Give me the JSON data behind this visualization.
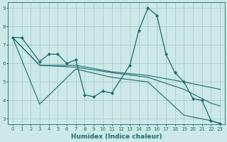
{
  "xlabel": "Humidex (Indice chaleur)",
  "xlim": [
    -0.5,
    23.5
  ],
  "ylim": [
    2.7,
    9.3
  ],
  "yticks": [
    3,
    4,
    5,
    6,
    7,
    8,
    9
  ],
  "xticks": [
    0,
    1,
    2,
    3,
    4,
    5,
    6,
    7,
    8,
    9,
    10,
    11,
    12,
    13,
    14,
    15,
    16,
    17,
    18,
    19,
    20,
    21,
    22,
    23
  ],
  "background_color": "#cce8e8",
  "grid_color": "#aacccc",
  "line_color": "#1a6b6b",
  "series": [
    {
      "x": [
        0,
        1,
        3,
        4,
        5,
        6,
        7,
        8,
        9,
        10,
        11,
        13,
        14,
        15,
        16,
        17,
        18,
        19,
        20,
        21,
        22,
        23
      ],
      "y": [
        7.4,
        7.4,
        6.1,
        6.5,
        6.5,
        6.0,
        6.2,
        4.3,
        4.2,
        4.5,
        4.4,
        5.9,
        7.8,
        9.0,
        8.6,
        6.5,
        5.5,
        5.0,
        4.1,
        4.0,
        2.9,
        2.75
      ],
      "marker": "D",
      "markersize": 2.0,
      "linewidth": 0.9,
      "has_marker": true
    },
    {
      "x": [
        0,
        3,
        7,
        11,
        15,
        19,
        22,
        23
      ],
      "y": [
        7.4,
        5.9,
        5.8,
        5.5,
        5.25,
        4.6,
        3.85,
        3.7
      ],
      "marker": null,
      "markersize": 0,
      "linewidth": 0.8,
      "has_marker": false
    },
    {
      "x": [
        0,
        3,
        7,
        11,
        15,
        19,
        22,
        23
      ],
      "y": [
        7.4,
        3.8,
        5.7,
        5.25,
        5.0,
        3.2,
        2.9,
        2.75
      ],
      "marker": null,
      "markersize": 0,
      "linewidth": 0.8,
      "has_marker": false
    },
    {
      "x": [
        0,
        3,
        7,
        11,
        15,
        19,
        22,
        23
      ],
      "y": [
        7.4,
        5.9,
        5.9,
        5.55,
        5.35,
        5.0,
        4.7,
        4.6
      ],
      "marker": null,
      "markersize": 0,
      "linewidth": 0.8,
      "has_marker": false
    }
  ]
}
